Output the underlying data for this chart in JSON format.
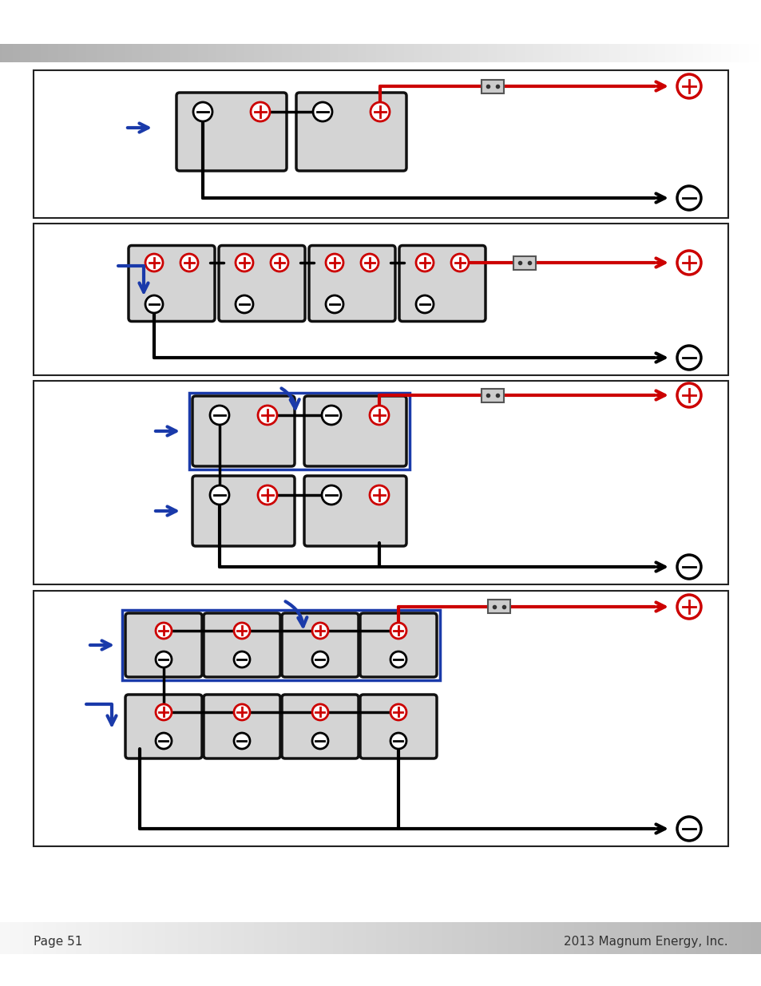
{
  "page_num": "Page 51",
  "company": "2013 Magnum Energy, Inc.",
  "bg_color": "#ffffff",
  "battery_fill": "#d4d4d4",
  "battery_border": "#111111",
  "pos_color": "#cc0000",
  "neg_color": "#000000",
  "wire_red": "#cc0000",
  "wire_black": "#000000",
  "arrow_blue": "#1a3aaa",
  "fuse_fill": "#cccccc",
  "fuse_border": "#555555"
}
